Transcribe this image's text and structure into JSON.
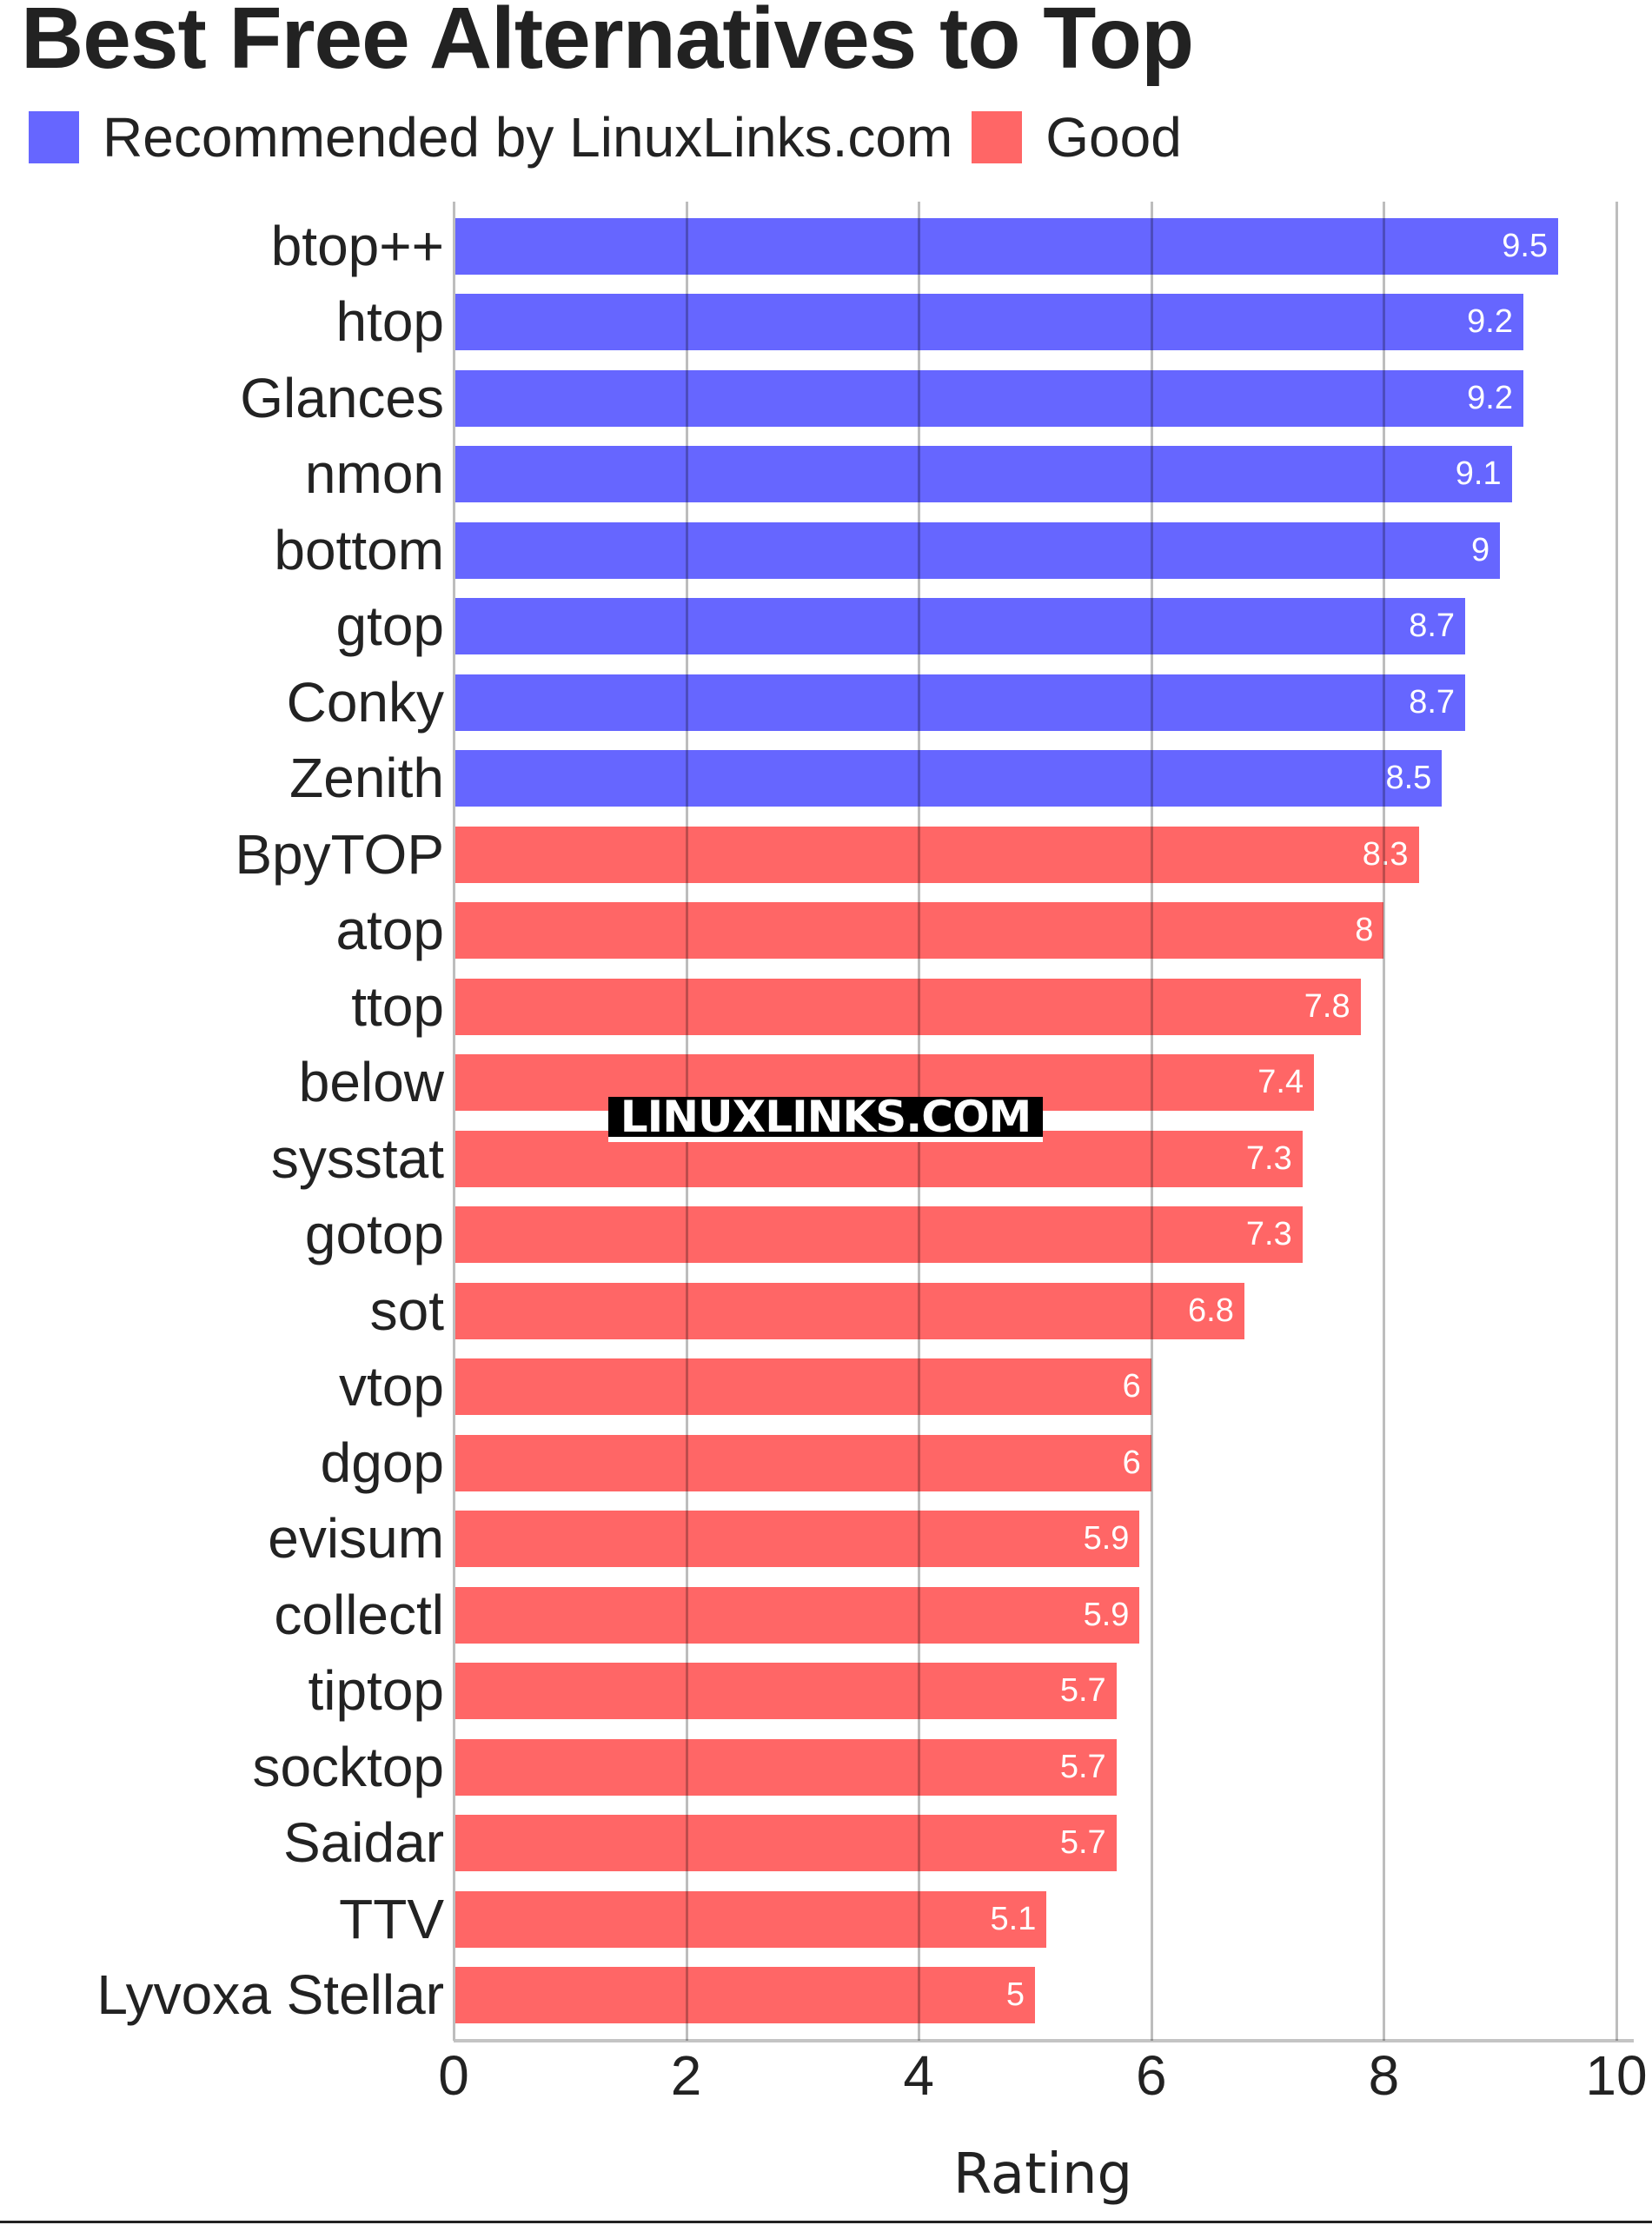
{
  "chart_data": {
    "type": "bar",
    "orientation": "horizontal",
    "title": "Best Free Alternatives to Top",
    "xlabel": "Rating",
    "ylabel": "",
    "xlim": [
      0,
      10
    ],
    "x_ticks": [
      "0",
      "2",
      "4",
      "6",
      "8",
      "10"
    ],
    "grid": true,
    "legend": {
      "position": "top-left",
      "entries": [
        {
          "label": "Recommended by LinuxLinks.com",
          "color": "#6666ff"
        },
        {
          "label": "Good",
          "color": "#ff6666"
        }
      ]
    },
    "categories": [
      "btop++",
      "htop",
      "Glances",
      "nmon",
      "bottom",
      "gtop",
      "Conky",
      "Zenith",
      "BpyTOP",
      "atop",
      "ttop",
      "below",
      "sysstat",
      "gotop",
      "sot",
      "vtop",
      "dgop",
      "evisum",
      "collectl",
      "tiptop",
      "socktop",
      "Saidar",
      "TTV",
      "Lyvoxa Stellar"
    ],
    "values": [
      9.5,
      9.2,
      9.2,
      9.1,
      9,
      8.7,
      8.7,
      8.5,
      8.3,
      8,
      7.8,
      7.4,
      7.3,
      7.3,
      6.8,
      6,
      6,
      5.9,
      5.9,
      5.7,
      5.7,
      5.7,
      5.1,
      5
    ],
    "value_labels": [
      "9.5",
      "9.2",
      "9.2",
      "9.1",
      "9",
      "8.7",
      "8.7",
      "8.5",
      "8.3",
      "8",
      "7.8",
      "7.4",
      "7.3",
      "7.3",
      "6.8",
      "6",
      "6",
      "5.9",
      "5.9",
      "5.7",
      "5.7",
      "5.7",
      "5.1",
      "5"
    ],
    "series_group": [
      "Recommended by LinuxLinks.com",
      "Recommended by LinuxLinks.com",
      "Recommended by LinuxLinks.com",
      "Recommended by LinuxLinks.com",
      "Recommended by LinuxLinks.com",
      "Recommended by LinuxLinks.com",
      "Recommended by LinuxLinks.com",
      "Recommended by LinuxLinks.com",
      "Good",
      "Good",
      "Good",
      "Good",
      "Good",
      "Good",
      "Good",
      "Good",
      "Good",
      "Good",
      "Good",
      "Good",
      "Good",
      "Good",
      "Good",
      "Good"
    ],
    "annotations": [
      "LINUXLINKS.COM"
    ]
  },
  "watermark": "LINUXLINKS.COM",
  "colors": {
    "recommended": "#6666ff",
    "good": "#ff6666"
  }
}
